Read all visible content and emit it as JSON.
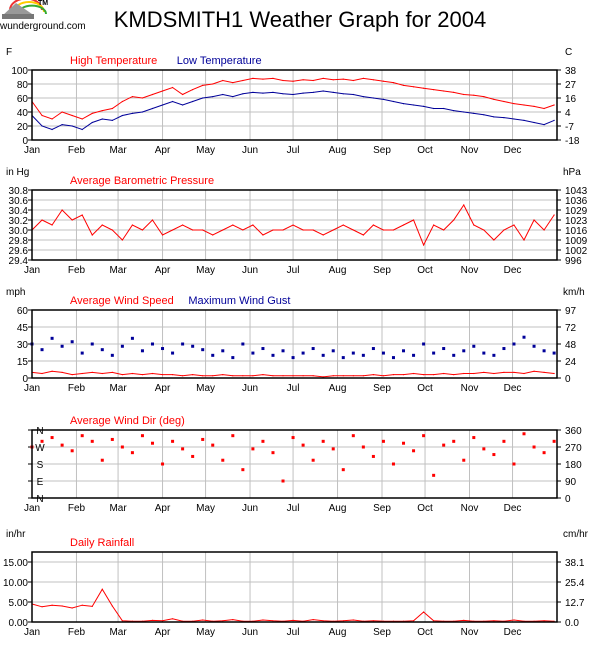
{
  "logo": {
    "text": "wunderground.com",
    "tm": "TM"
  },
  "colors": {
    "red": "#ff0000",
    "blue": "#000099",
    "grid": "#c0c0c0"
  },
  "chart_data": {
    "title": "KMDSMITH1 Weather Graph for 2004",
    "months": [
      "Jan",
      "Feb",
      "Mar",
      "Apr",
      "May",
      "Jun",
      "Jul",
      "Aug",
      "Sep",
      "Oct",
      "Nov",
      "Dec"
    ],
    "sample_interval_days": 7,
    "panels": [
      {
        "type": "line",
        "left_unit": "F",
        "right_unit": "C",
        "ylim": [
          0,
          100
        ],
        "yticks": [
          "0",
          "20",
          "40",
          "60",
          "80",
          "100"
        ],
        "right_ticks": [
          "-18",
          "-7",
          "4",
          "16",
          "27",
          "38"
        ],
        "series": [
          {
            "name": "High Temperature",
            "color": "#ff0000",
            "values": [
              55,
              35,
              30,
              40,
              35,
              30,
              38,
              42,
              45,
              55,
              62,
              60,
              65,
              70,
              75,
              65,
              72,
              78,
              80,
              85,
              82,
              85,
              88,
              87,
              88,
              85,
              84,
              86,
              85,
              88,
              86,
              87,
              85,
              88,
              86,
              84,
              82,
              78,
              76,
              74,
              72,
              70,
              68,
              65,
              64,
              62,
              58,
              55,
              52,
              50,
              48,
              45,
              50
            ]
          },
          {
            "name": "Low Temperature",
            "color": "#000099",
            "values": [
              35,
              20,
              15,
              22,
              20,
              15,
              25,
              30,
              28,
              35,
              38,
              40,
              45,
              50,
              55,
              50,
              55,
              60,
              62,
              65,
              62,
              66,
              68,
              67,
              68,
              66,
              65,
              67,
              68,
              70,
              68,
              66,
              65,
              62,
              60,
              58,
              55,
              52,
              50,
              48,
              45,
              45,
              42,
              40,
              38,
              36,
              33,
              32,
              30,
              28,
              25,
              22,
              28
            ]
          }
        ]
      },
      {
        "type": "line",
        "left_unit": "in Hg",
        "right_unit": "hPa",
        "ylim": [
          29.4,
          30.8
        ],
        "yticks": [
          "29.4",
          "29.6",
          "29.8",
          "30.0",
          "30.2",
          "30.4",
          "30.6",
          "30.8"
        ],
        "right_ticks": [
          "996",
          "1002",
          "1009",
          "1016",
          "1023",
          "1029",
          "1036",
          "1043"
        ],
        "series": [
          {
            "name": "Average Barometric Pressure",
            "color": "#ff0000",
            "values": [
              30.0,
              30.2,
              30.1,
              30.4,
              30.2,
              30.3,
              29.9,
              30.1,
              30.0,
              29.8,
              30.1,
              30.0,
              30.2,
              29.9,
              30.0,
              30.1,
              30.0,
              30.0,
              29.9,
              30.0,
              30.1,
              30.0,
              30.1,
              29.9,
              30.0,
              30.0,
              30.1,
              30.0,
              30.0,
              29.9,
              30.0,
              30.1,
              30.0,
              29.9,
              30.1,
              30.0,
              30.0,
              30.1,
              30.2,
              29.7,
              30.1,
              30.0,
              30.2,
              30.5,
              30.1,
              30.0,
              29.8,
              30.0,
              30.1,
              29.8,
              30.2,
              30.0,
              30.3
            ]
          }
        ]
      },
      {
        "type": "line+scatter",
        "left_unit": "mph",
        "right_unit": "km/h",
        "ylim": [
          0,
          60
        ],
        "yticks": [
          "0",
          "15",
          "30",
          "45",
          "60"
        ],
        "right_ticks": [
          "0",
          "24",
          "48",
          "72",
          "97"
        ],
        "series": [
          {
            "name": "Average Wind Speed",
            "color": "#ff0000",
            "mode": "line",
            "values": [
              5,
              4,
              6,
              5,
              3,
              4,
              5,
              4,
              5,
              3,
              4,
              3,
              4,
              3,
              3,
              2,
              3,
              2,
              2,
              3,
              2,
              2,
              2,
              3,
              2,
              2,
              2,
              2,
              2,
              1,
              2,
              2,
              2,
              2,
              3,
              2,
              3,
              3,
              4,
              3,
              3,
              4,
              3,
              4,
              4,
              5,
              4,
              5,
              5,
              4,
              6,
              5,
              4
            ]
          },
          {
            "name": "Maximum Wind Gust",
            "color": "#000099",
            "mode": "scatter",
            "values": [
              30,
              25,
              35,
              28,
              32,
              22,
              30,
              25,
              20,
              28,
              35,
              24,
              30,
              26,
              22,
              30,
              28,
              25,
              20,
              24,
              18,
              30,
              22,
              26,
              20,
              24,
              18,
              22,
              26,
              20,
              24,
              18,
              22,
              20,
              26,
              22,
              18,
              24,
              20,
              30,
              22,
              26,
              20,
              24,
              28,
              22,
              20,
              26,
              30,
              36,
              28,
              24,
              22
            ]
          }
        ]
      },
      {
        "type": "scatter",
        "title": "Average Wind Dir (deg)",
        "ylim": [
          0,
          360
        ],
        "yticks": [
          "N",
          "E",
          "S",
          "W",
          "N"
        ],
        "right_ticks": [
          "0",
          "90",
          "180",
          "270",
          "360"
        ],
        "series": [
          {
            "name": "Average Wind Dir (deg)",
            "color": "#ff0000",
            "values": [
              270,
              300,
              320,
              280,
              250,
              330,
              300,
              200,
              310,
              270,
              240,
              330,
              290,
              180,
              300,
              260,
              220,
              310,
              280,
              200,
              330,
              150,
              260,
              300,
              240,
              90,
              320,
              280,
              200,
              300,
              260,
              150,
              330,
              270,
              220,
              300,
              180,
              290,
              250,
              330,
              120,
              280,
              300,
              200,
              320,
              260,
              230,
              300,
              180,
              340,
              270,
              240,
              300
            ]
          }
        ]
      },
      {
        "type": "area",
        "left_unit": "in/hr",
        "right_unit": "cm/hr",
        "ylim": [
          0,
          17.5
        ],
        "yticks": [
          "0.00",
          "5.00",
          "10.00",
          "15.00"
        ],
        "right_ticks": [
          "0.0",
          "12.7",
          "25.4",
          "38.1"
        ],
        "series": [
          {
            "name": "Daily Rainfall",
            "color": "#ff0000",
            "values": [
              4.5,
              3.8,
              4.2,
              4.0,
              3.5,
              4.2,
              3.9,
              8.2,
              4.0,
              0.3,
              0.2,
              0.2,
              0.4,
              0.3,
              0.8,
              0.2,
              0.2,
              0.5,
              0.2,
              0.3,
              0.6,
              0.2,
              0.2,
              0.5,
              0.3,
              0.2,
              0.4,
              0.2,
              0.6,
              0.3,
              0.2,
              0.3,
              0.5,
              0.2,
              0.3,
              0.2,
              0.2,
              0.2,
              0.3,
              2.5,
              0.3,
              0.2,
              0.2,
              0.4,
              0.2,
              0.2,
              0.3,
              0.2,
              0.5,
              0.2,
              0.2,
              0.3,
              0.2
            ]
          }
        ]
      }
    ]
  }
}
